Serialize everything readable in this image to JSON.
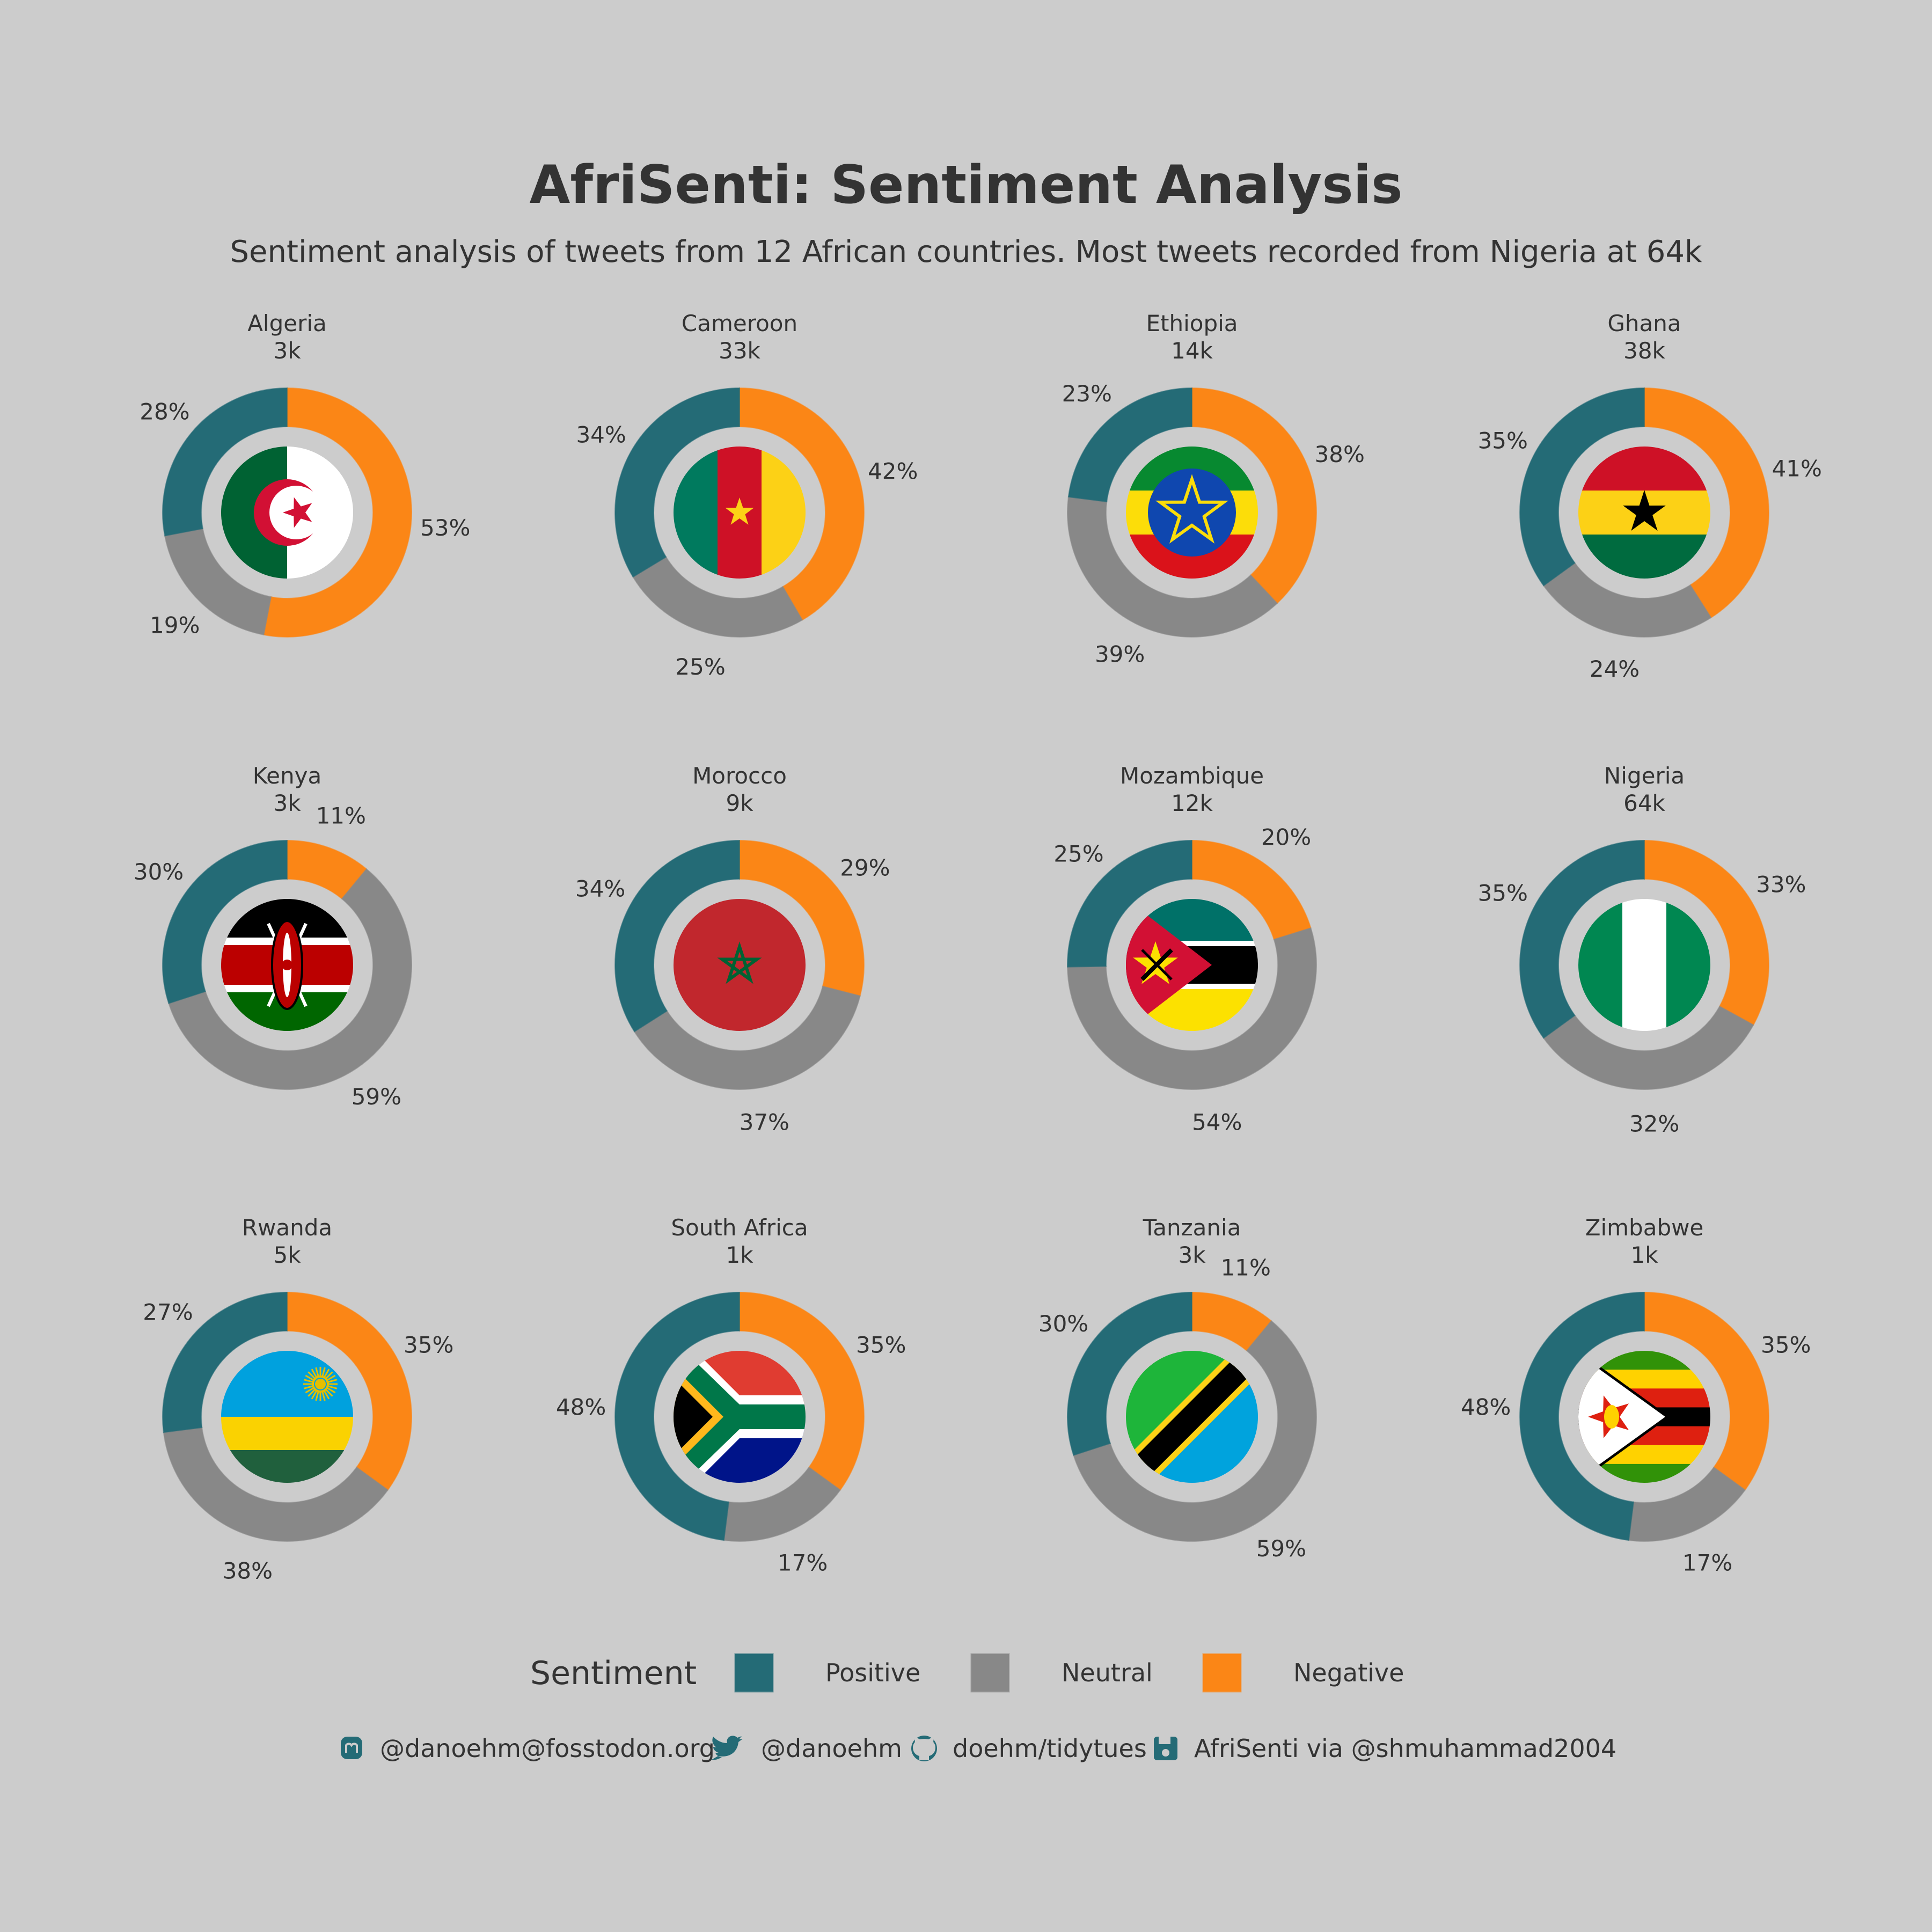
{
  "title": "AfriSenti: Sentiment Analysis",
  "subtitle": "Sentiment analysis of tweets from 12 African countries. Most tweets recorded from Nigeria at 64k",
  "colors": {
    "positive": "#246b76",
    "neutral": "#888888",
    "negative": "#fb8616",
    "background": "#cccccc",
    "text": "#333333"
  },
  "chart_data": {
    "type": "donut",
    "series_order": [
      "Positive",
      "Neutral",
      "Negative"
    ],
    "panels": [
      {
        "country": "Algeria",
        "total": "3k",
        "flag": "algeria",
        "positive": 28,
        "neutral": 19,
        "negative": 53
      },
      {
        "country": "Cameroon",
        "total": "33k",
        "flag": "cameroon",
        "positive": 34,
        "neutral": 25,
        "negative": 42
      },
      {
        "country": "Ethiopia",
        "total": "14k",
        "flag": "ethiopia",
        "positive": 23,
        "neutral": 39,
        "negative": 38
      },
      {
        "country": "Ghana",
        "total": "38k",
        "flag": "ghana",
        "positive": 35,
        "neutral": 24,
        "negative": 41
      },
      {
        "country": "Kenya",
        "total": "3k",
        "flag": "kenya",
        "positive": 30,
        "neutral": 59,
        "negative": 11
      },
      {
        "country": "Morocco",
        "total": "9k",
        "flag": "morocco",
        "positive": 34,
        "neutral": 37,
        "negative": 29
      },
      {
        "country": "Mozambique",
        "total": "12k",
        "flag": "mozambique",
        "positive": 25,
        "neutral": 54,
        "negative": 20
      },
      {
        "country": "Nigeria",
        "total": "64k",
        "flag": "nigeria",
        "positive": 35,
        "neutral": 32,
        "negative": 33
      },
      {
        "country": "Rwanda",
        "total": "5k",
        "flag": "rwanda",
        "positive": 27,
        "neutral": 38,
        "negative": 35
      },
      {
        "country": "South Africa",
        "total": "1k",
        "flag": "south-africa",
        "positive": 48,
        "neutral": 17,
        "negative": 35
      },
      {
        "country": "Tanzania",
        "total": "3k",
        "flag": "tanzania",
        "positive": 30,
        "neutral": 59,
        "negative": 11
      },
      {
        "country": "Zimbabwe",
        "total": "1k",
        "flag": "zimbabwe",
        "positive": 48,
        "neutral": 17,
        "negative": 35
      }
    ]
  },
  "legend": {
    "title": "Sentiment",
    "items": [
      {
        "label": "Positive",
        "key": "positive"
      },
      {
        "label": "Neutral",
        "key": "neutral"
      },
      {
        "label": "Negative",
        "key": "negative"
      }
    ]
  },
  "caption": [
    {
      "icon": "mastodon-icon",
      "text": "@danoehm@fosstodon.org"
    },
    {
      "icon": "twitter-icon",
      "text": "@danoehm"
    },
    {
      "icon": "github-icon",
      "text": "doehm/tidytues"
    },
    {
      "icon": "floppy-disk-icon",
      "text": "AfriSenti via @shmuhammad2004"
    }
  ]
}
